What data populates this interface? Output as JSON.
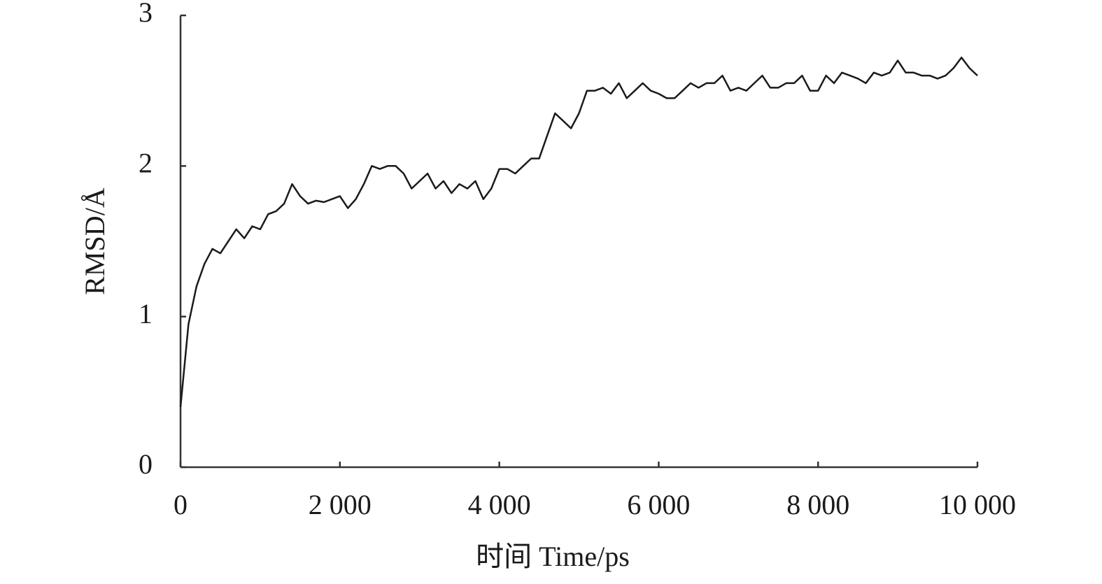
{
  "chart_data": {
    "type": "line",
    "x_label": "时间 Time/ps",
    "y_label": "RMSD/Å",
    "x": [
      0,
      100,
      200,
      300,
      400,
      500,
      600,
      700,
      800,
      900,
      1000,
      1100,
      1200,
      1300,
      1400,
      1500,
      1600,
      1700,
      1800,
      1900,
      2000,
      2100,
      2200,
      2300,
      2400,
      2500,
      2600,
      2700,
      2800,
      2900,
      3000,
      3100,
      3200,
      3300,
      3400,
      3500,
      3600,
      3700,
      3800,
      3900,
      4000,
      4100,
      4200,
      4300,
      4400,
      4500,
      4600,
      4700,
      4800,
      4900,
      5000,
      5100,
      5200,
      5300,
      5400,
      5500,
      5600,
      5700,
      5800,
      5900,
      6000,
      6100,
      6200,
      6300,
      6400,
      6500,
      6600,
      6700,
      6800,
      6900,
      7000,
      7100,
      7200,
      7300,
      7400,
      7500,
      7600,
      7700,
      7800,
      7900,
      8000,
      8100,
      8200,
      8300,
      8400,
      8500,
      8600,
      8700,
      8800,
      8900,
      9000,
      9100,
      9200,
      9300,
      9400,
      9500,
      9600,
      9700,
      9800,
      9900,
      10000
    ],
    "series": [
      {
        "color": "#1a1a1a",
        "values": [
          0.4,
          0.95,
          1.2,
          1.35,
          1.45,
          1.42,
          1.5,
          1.58,
          1.52,
          1.6,
          1.58,
          1.68,
          1.7,
          1.75,
          1.88,
          1.8,
          1.75,
          1.77,
          1.76,
          1.78,
          1.8,
          1.72,
          1.78,
          1.88,
          2.0,
          1.98,
          2.0,
          2.0,
          1.95,
          1.85,
          1.9,
          1.95,
          1.85,
          1.9,
          1.82,
          1.88,
          1.85,
          1.9,
          1.78,
          1.85,
          1.98,
          1.98,
          1.95,
          2.0,
          2.05,
          2.05,
          2.2,
          2.35,
          2.3,
          2.25,
          2.35,
          2.5,
          2.5,
          2.52,
          2.48,
          2.55,
          2.45,
          2.5,
          2.55,
          2.5,
          2.48,
          2.45,
          2.45,
          2.5,
          2.55,
          2.52,
          2.55,
          2.55,
          2.6,
          2.5,
          2.52,
          2.5,
          2.55,
          2.6,
          2.52,
          2.52,
          2.55,
          2.55,
          2.6,
          2.5,
          2.5,
          2.6,
          2.55,
          2.62,
          2.6,
          2.58,
          2.55,
          2.62,
          2.6,
          2.62,
          2.7,
          2.62,
          2.62,
          2.6,
          2.6,
          2.58,
          2.6,
          2.65,
          2.72,
          2.65,
          2.6
        ]
      }
    ],
    "xlim": [
      0,
      10000
    ],
    "xticks": [
      0,
      {
        "value": 2000,
        "label": "2 000"
      },
      {
        "value": 4000,
        "label": "4 000"
      },
      {
        "value": 6000,
        "label": "6 000"
      },
      {
        "value": 8000,
        "label": "8 000"
      },
      {
        "value": 10000,
        "label": "10 000"
      }
    ],
    "ylim": [
      0,
      3
    ],
    "yticks": [
      0,
      1,
      2,
      3
    ]
  }
}
